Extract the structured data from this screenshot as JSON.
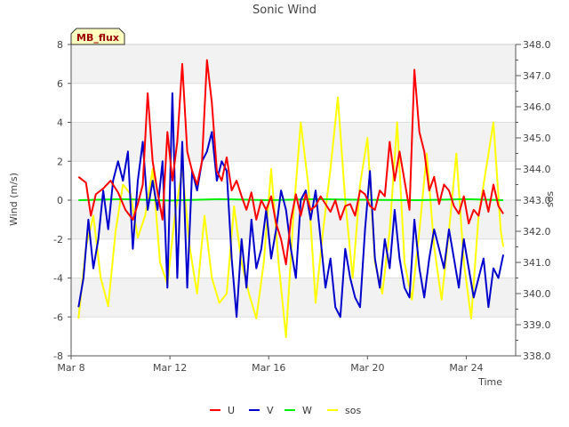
{
  "chart_data": {
    "type": "line",
    "title": "Sonic Wind",
    "badge": "MB_flux",
    "xlabel": "Time",
    "ylabel": "Wind (m/s)",
    "y2label": "sos",
    "x_unit": "days since Mar 8",
    "xlim": [
      0,
      18
    ],
    "ylim": [
      -8,
      8
    ],
    "y2lim": [
      338.0,
      348.0
    ],
    "x_ticks": [
      {
        "x": 0,
        "label": "Mar 8"
      },
      {
        "x": 4,
        "label": "Mar 12"
      },
      {
        "x": 8,
        "label": "Mar 16"
      },
      {
        "x": 12,
        "label": "Mar 20"
      },
      {
        "x": 16,
        "label": "Mar 24"
      }
    ],
    "y_ticks": [
      {
        "v": -8,
        "label": "-8"
      },
      {
        "v": -6,
        "label": "-6"
      },
      {
        "v": -4,
        "label": "-4"
      },
      {
        "v": -2,
        "label": "-2"
      },
      {
        "v": 0,
        "label": "0"
      },
      {
        "v": 2,
        "label": "2"
      },
      {
        "v": 4,
        "label": "4"
      },
      {
        "v": 6,
        "label": "6"
      },
      {
        "v": 8,
        "label": "8"
      }
    ],
    "y2_ticks": [
      {
        "v": 338.0,
        "label": "338.0"
      },
      {
        "v": 339.0,
        "label": "339.0"
      },
      {
        "v": 340.0,
        "label": "340.0"
      },
      {
        "v": 341.0,
        "label": "341.0"
      },
      {
        "v": 342.0,
        "label": "342.0"
      },
      {
        "v": 343.0,
        "label": "343.0"
      },
      {
        "v": 344.0,
        "label": "344.0"
      },
      {
        "v": 345.0,
        "label": "345.0"
      },
      {
        "v": 346.0,
        "label": "346.0"
      },
      {
        "v": 347.0,
        "label": "347.0"
      },
      {
        "v": 348.0,
        "label": "348.0"
      }
    ],
    "series": [
      {
        "name": "U",
        "color": "#ff0000",
        "axis": "left",
        "x": [
          0.3,
          0.6,
          0.8,
          1.0,
          1.3,
          1.6,
          1.9,
          2.2,
          2.5,
          2.7,
          2.9,
          3.1,
          3.3,
          3.5,
          3.7,
          3.9,
          4.1,
          4.3,
          4.5,
          4.7,
          4.9,
          5.1,
          5.3,
          5.5,
          5.7,
          5.9,
          6.1,
          6.3,
          6.5,
          6.7,
          6.9,
          7.1,
          7.3,
          7.5,
          7.7,
          7.9,
          8.1,
          8.3,
          8.5,
          8.7,
          8.9,
          9.1,
          9.3,
          9.5,
          9.7,
          9.9,
          10.1,
          10.3,
          10.5,
          10.7,
          10.9,
          11.1,
          11.3,
          11.5,
          11.7,
          11.9,
          12.1,
          12.3,
          12.5,
          12.7,
          12.9,
          13.1,
          13.3,
          13.5,
          13.7,
          13.9,
          14.1,
          14.3,
          14.5,
          14.7,
          14.9,
          15.1,
          15.3,
          15.5,
          15.7,
          15.9,
          16.1,
          16.3,
          16.5,
          16.7,
          16.9,
          17.1,
          17.3,
          17.5
        ],
        "values": [
          1.2,
          0.9,
          -0.8,
          0.3,
          0.6,
          1.0,
          0.4,
          -0.5,
          -1.0,
          -0.2,
          0.8,
          5.5,
          2.0,
          0.4,
          -1.0,
          3.5,
          1.0,
          3.0,
          7.0,
          2.5,
          1.5,
          0.8,
          2.0,
          7.2,
          5.0,
          1.5,
          1.0,
          2.2,
          0.5,
          1.0,
          0.2,
          -0.5,
          0.4,
          -1.0,
          0.0,
          -0.5,
          0.2,
          -1.2,
          -2.0,
          -3.3,
          -1.0,
          0.3,
          -0.8,
          0.3,
          -0.5,
          -0.3,
          0.2,
          -0.2,
          -0.6,
          0.0,
          -1.0,
          -0.3,
          -0.2,
          -0.8,
          0.5,
          0.3,
          -0.3,
          -0.5,
          0.5,
          0.2,
          3.0,
          1.0,
          2.5,
          1.0,
          -0.5,
          6.7,
          3.5,
          2.5,
          0.5,
          1.2,
          -0.2,
          0.8,
          0.5,
          -0.3,
          -0.7,
          0.2,
          -1.2,
          -0.5,
          -0.8,
          0.5,
          -0.6,
          0.8,
          -0.3,
          -0.7
        ]
      },
      {
        "name": "V",
        "color": "#0000cc",
        "axis": "left",
        "x": [
          0.3,
          0.5,
          0.7,
          0.9,
          1.1,
          1.3,
          1.5,
          1.7,
          1.9,
          2.1,
          2.3,
          2.5,
          2.7,
          2.9,
          3.1,
          3.3,
          3.5,
          3.7,
          3.9,
          4.1,
          4.3,
          4.5,
          4.7,
          4.9,
          5.1,
          5.3,
          5.5,
          5.7,
          5.9,
          6.1,
          6.3,
          6.5,
          6.7,
          6.9,
          7.1,
          7.3,
          7.5,
          7.7,
          7.9,
          8.1,
          8.3,
          8.5,
          8.7,
          8.9,
          9.1,
          9.3,
          9.5,
          9.7,
          9.9,
          10.1,
          10.3,
          10.5,
          10.7,
          10.9,
          11.1,
          11.3,
          11.5,
          11.7,
          11.9,
          12.1,
          12.3,
          12.5,
          12.7,
          12.9,
          13.1,
          13.3,
          13.5,
          13.7,
          13.9,
          14.1,
          14.3,
          14.5,
          14.7,
          14.9,
          15.1,
          15.3,
          15.5,
          15.7,
          15.9,
          16.1,
          16.3,
          16.5,
          16.7,
          16.9,
          17.1,
          17.3,
          17.5
        ],
        "values": [
          -5.5,
          -4.0,
          -1.0,
          -3.5,
          -2.0,
          0.5,
          -1.5,
          1.0,
          2.0,
          1.0,
          2.5,
          -2.5,
          1.0,
          3.0,
          -0.5,
          1.0,
          -0.5,
          2.0,
          -4.5,
          5.5,
          -4.0,
          3.0,
          -4.5,
          1.5,
          0.5,
          2.0,
          2.5,
          3.5,
          1.0,
          2.0,
          1.5,
          -3.0,
          -6.0,
          -2.0,
          -4.5,
          -1.0,
          -3.5,
          -2.5,
          -0.5,
          -3.0,
          -1.5,
          0.5,
          -0.5,
          -2.5,
          -4.0,
          0.0,
          0.5,
          -1.0,
          0.5,
          -2.0,
          -4.5,
          -3.0,
          -5.5,
          -6.0,
          -2.5,
          -4.0,
          -5.0,
          -5.5,
          -1.5,
          1.5,
          -3.0,
          -4.5,
          -2.0,
          -3.5,
          -0.5,
          -3.0,
          -4.5,
          -5.0,
          -1.0,
          -3.5,
          -5.0,
          -3.0,
          -1.5,
          -2.5,
          -3.5,
          -1.5,
          -3.0,
          -4.5,
          -2.0,
          -3.5,
          -5.0,
          -4.0,
          -3.0,
          -5.5,
          -3.5,
          -4.0,
          -2.8
        ]
      },
      {
        "name": "W",
        "color": "#00ee00",
        "axis": "left",
        "x": [
          0.3,
          2.0,
          4.0,
          6.0,
          8.0,
          10.0,
          12.0,
          14.0,
          16.0,
          17.5
        ],
        "values": [
          0.0,
          0.05,
          -0.02,
          0.05,
          0.0,
          0.05,
          0.02,
          0.0,
          0.05,
          0.0
        ]
      },
      {
        "name": "sos",
        "color": "#ffff00",
        "axis": "right",
        "x": [
          0.3,
          0.6,
          0.9,
          1.2,
          1.5,
          1.8,
          2.1,
          2.4,
          2.7,
          3.0,
          3.3,
          3.6,
          3.9,
          4.2,
          4.5,
          4.8,
          5.1,
          5.4,
          5.7,
          6.0,
          6.3,
          6.6,
          6.9,
          7.2,
          7.5,
          7.8,
          8.1,
          8.4,
          8.7,
          9.0,
          9.3,
          9.6,
          9.9,
          10.2,
          10.5,
          10.8,
          11.1,
          11.4,
          11.7,
          12.0,
          12.3,
          12.6,
          12.9,
          13.2,
          13.5,
          13.8,
          14.1,
          14.4,
          14.7,
          15.0,
          15.3,
          15.6,
          15.9,
          16.2,
          16.5,
          16.8,
          17.1,
          17.4,
          17.5
        ],
        "values": [
          339.2,
          341.5,
          342.5,
          340.5,
          339.6,
          342.0,
          343.5,
          343.2,
          341.8,
          342.5,
          344.0,
          341.0,
          340.3,
          342.5,
          344.0,
          341.5,
          340.0,
          342.5,
          340.5,
          339.7,
          340.0,
          342.8,
          341.0,
          340.0,
          339.2,
          341.0,
          344.0,
          341.0,
          338.6,
          342.5,
          345.5,
          343.5,
          339.7,
          342.0,
          344.0,
          346.3,
          343.0,
          340.5,
          343.5,
          345.0,
          341.0,
          340.0,
          342.0,
          345.5,
          341.0,
          339.8,
          342.0,
          344.5,
          341.5,
          339.8,
          342.0,
          344.5,
          341.0,
          339.2,
          342.5,
          344.0,
          345.5,
          342.0,
          341.5
        ]
      }
    ],
    "legend": [
      {
        "name": "U",
        "color": "#ff0000"
      },
      {
        "name": "V",
        "color": "#0000cc"
      },
      {
        "name": "W",
        "color": "#00ee00"
      },
      {
        "name": "sos",
        "color": "#ffff00"
      }
    ]
  }
}
